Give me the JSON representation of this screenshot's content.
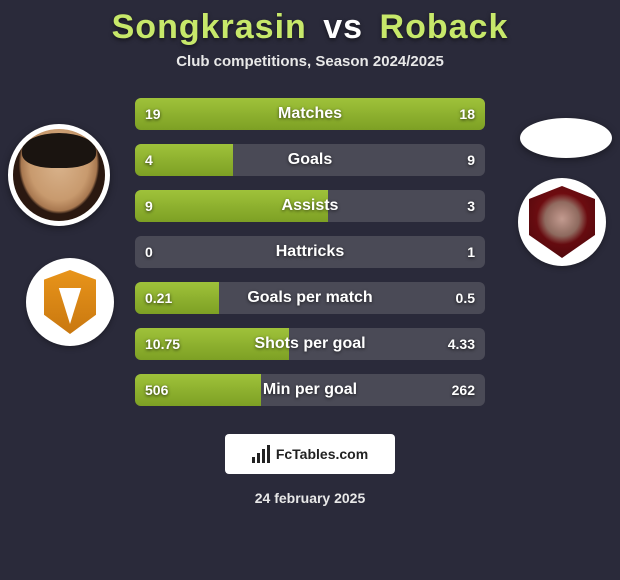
{
  "title_left": "Songkrasin",
  "title_vs": "vs",
  "title_right": "Roback",
  "subtitle": "Club competitions, Season 2024/2025",
  "colors": {
    "title_left": "#c7e86a",
    "title_vs": "#ffffff",
    "title_right": "#c7e86a",
    "bar_fill": "#8fb52e",
    "bar_bg": "#4a4a56",
    "page_bg": "#2a2a3a"
  },
  "rows": [
    {
      "label": "Matches",
      "left": "19",
      "right": "18",
      "left_pct": 51,
      "right_pct": 49,
      "highlight": "left"
    },
    {
      "label": "Goals",
      "left": "4",
      "right": "9",
      "left_pct": 28,
      "right_pct": 0,
      "highlight": "right"
    },
    {
      "label": "Assists",
      "left": "9",
      "right": "3",
      "left_pct": 55,
      "right_pct": 0,
      "highlight": "left"
    },
    {
      "label": "Hattricks",
      "left": "0",
      "right": "1",
      "left_pct": 0,
      "right_pct": 0,
      "highlight": "right"
    },
    {
      "label": "Goals per match",
      "left": "0.21",
      "right": "0.5",
      "left_pct": 24,
      "right_pct": 0,
      "highlight": "right"
    },
    {
      "label": "Shots per goal",
      "left": "10.75",
      "right": "4.33",
      "left_pct": 44,
      "right_pct": 0,
      "highlight": "left"
    },
    {
      "label": "Min per goal",
      "left": "506",
      "right": "262",
      "left_pct": 36,
      "right_pct": 0,
      "highlight": "left"
    }
  ],
  "footer_brand": "FcTables.com",
  "date": "24 february 2025"
}
